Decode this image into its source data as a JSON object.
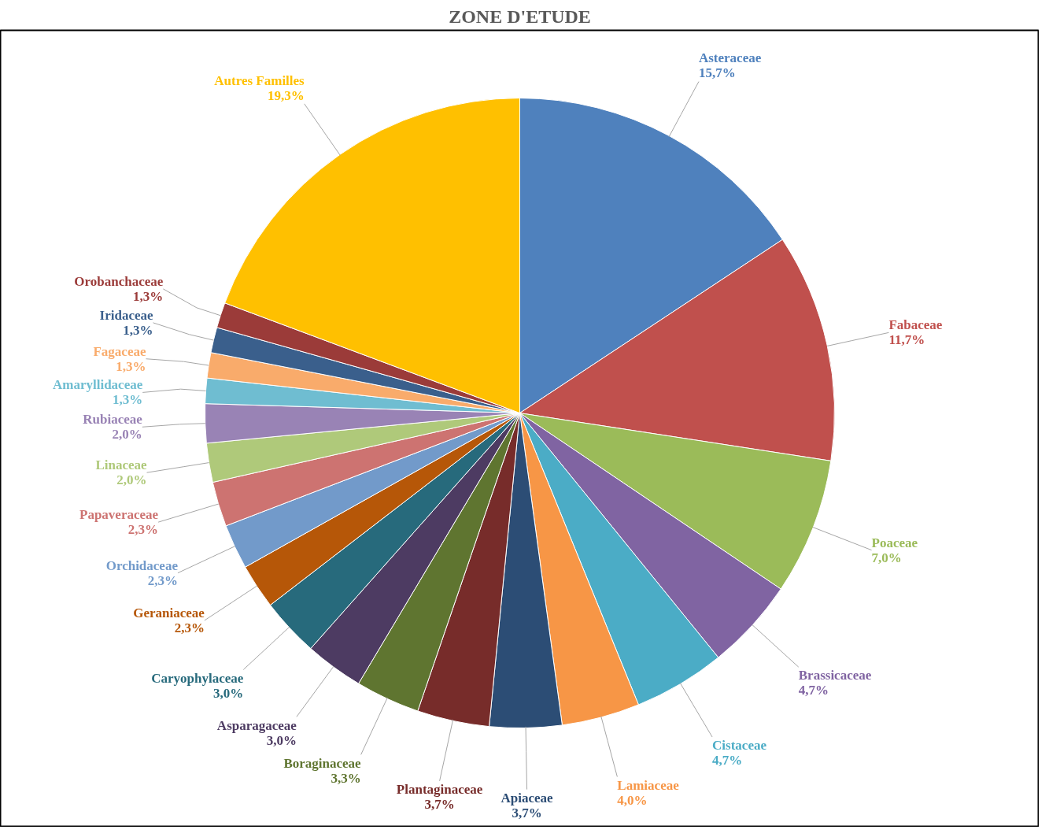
{
  "chart_data": {
    "type": "pie",
    "title": "ZONE D'ETUDE",
    "categories": [
      "Asteraceae",
      "Fabaceae",
      "Poaceae",
      "Brassicaceae",
      "Cistaceae",
      "Lamiaceae",
      "Apiaceae",
      "Plantaginaceae",
      "Boraginaceae",
      "Asparagaceae",
      "Caryophylaceae",
      "Geraniaceae",
      "Orchidaceae",
      "Papaveraceae",
      "Linaceae",
      "Rubiaceae",
      "Amaryllidaceae",
      "Fagaceae",
      "Iridaceae",
      "Orobanchaceae",
      "Autres Familles"
    ],
    "values": [
      15.7,
      11.7,
      7.0,
      4.7,
      4.7,
      4.0,
      3.7,
      3.7,
      3.3,
      3.0,
      3.0,
      2.3,
      2.3,
      2.3,
      2.0,
      2.0,
      1.3,
      1.3,
      1.3,
      1.3,
      19.3
    ],
    "value_labels": [
      "15,7%",
      "11,7%",
      "7,0%",
      "4,7%",
      "4,7%",
      "4,0%",
      "3,7%",
      "3,7%",
      "3,3%",
      "3,0%",
      "3,0%",
      "2,3%",
      "2,3%",
      "2,3%",
      "2,0%",
      "2,0%",
      "1,3%",
      "1,3%",
      "1,3%",
      "1,3%",
      "19,3%"
    ],
    "colors": [
      "#4f81bd",
      "#c0504d",
      "#9bbb59",
      "#8064a2",
      "#4bacc6",
      "#f79646",
      "#2c4d75",
      "#772c2a",
      "#5f7530",
      "#4d3b62",
      "#276a7c",
      "#b65708",
      "#729aca",
      "#cd7371",
      "#afc97a",
      "#9983b5",
      "#6fbdd1",
      "#f9ab6b",
      "#3a5f8c",
      "#9b3b39",
      "#ffc000"
    ]
  }
}
